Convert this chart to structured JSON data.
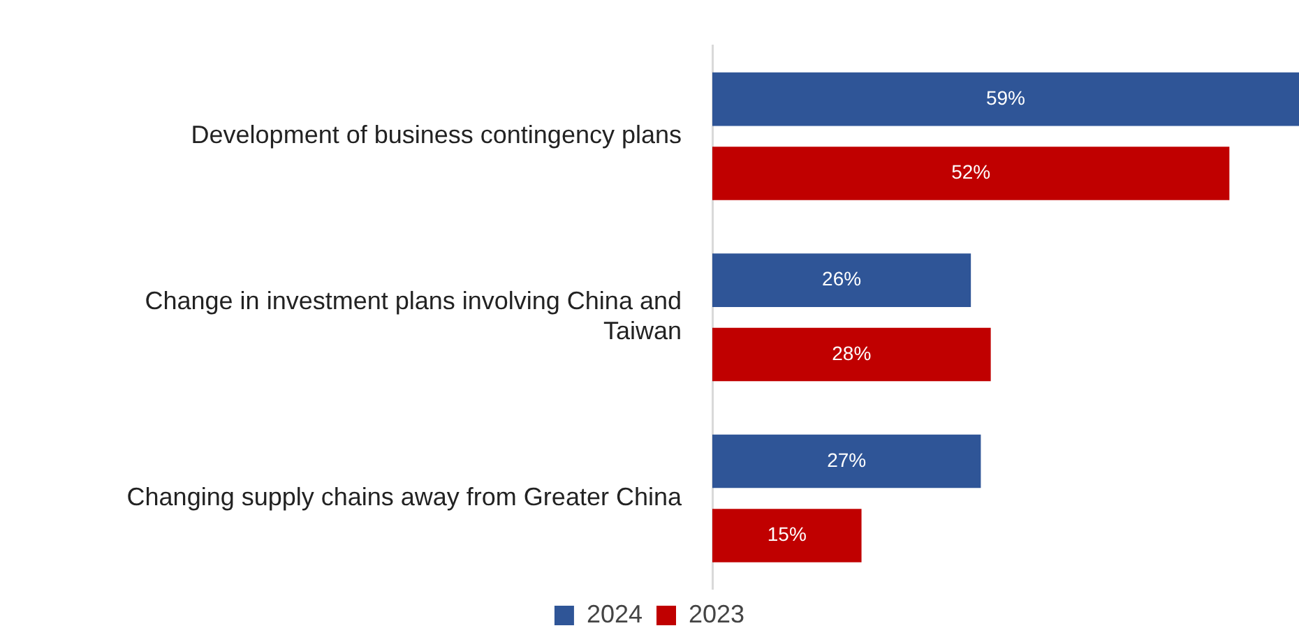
{
  "chart_data": {
    "type": "bar",
    "orientation": "horizontal",
    "categories": [
      "Development of business contingency plans",
      "Change in investment plans involving China and Taiwan",
      "Changing supply chains away from Greater China"
    ],
    "series": [
      {
        "name": "2024",
        "color": "#2f5597",
        "values": [
          59,
          26,
          27
        ],
        "value_labels": [
          "59%",
          "26%",
          "27%"
        ]
      },
      {
        "name": "2023",
        "color": "#c00000",
        "values": [
          52,
          28,
          15
        ],
        "value_labels": [
          "52%",
          "28%",
          "15%"
        ]
      }
    ],
    "legend": "bottom",
    "grid": false
  }
}
